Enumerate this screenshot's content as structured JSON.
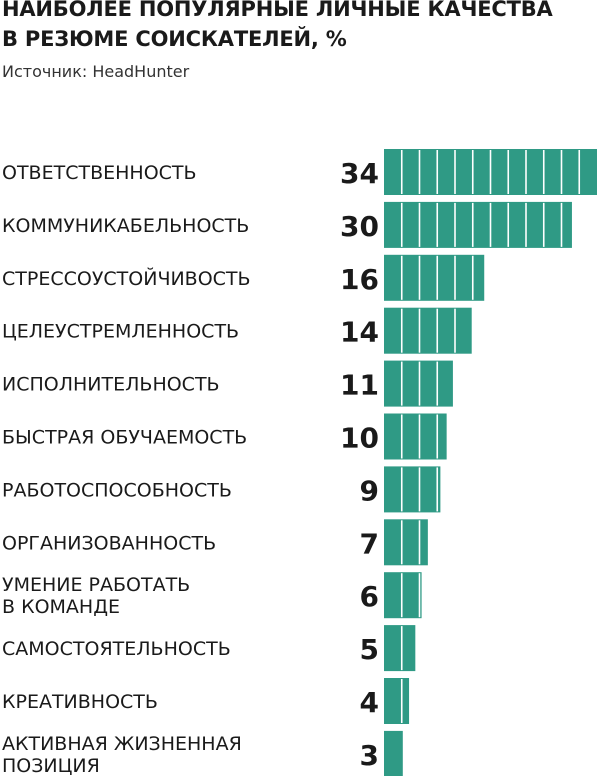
{
  "title": "НАИБОЛЕЕ ПОПУЛЯРНЫЕ ЛИЧНЫЕ КАЧЕСТВА\nВ РЕЗЮМЕ СОИСКАТЕЛЕЙ, %",
  "source": "Источник: HeadHunter",
  "colors": {
    "bar": "#2f9a85",
    "segment_divider": "#ffffff",
    "text": "#1a1a1a"
  },
  "chart_data": {
    "type": "bar",
    "orientation": "horizontal",
    "title": "НАИБОЛЕЕ ПОПУЛЯРНЫЕ ЛИЧНЫЕ КАЧЕСТВА В РЕЗЮМЕ СОИСКАТЕЛЕЙ, %",
    "categories": [
      "ОТВЕТСТВЕННОСТЬ",
      "КОММУНИКАБЕЛЬНОСТЬ",
      "СТРЕССОУСТОЙЧИВОСТЬ",
      "ЦЕЛЕУСТРЕМЛЕННОСТЬ",
      "ИСПОЛНИТЕЛЬНОСТЬ",
      "БЫСТРАЯ ОБУЧАЕМОСТЬ",
      "РАБОТОСПОСОБНОСТЬ",
      "ОРГАНИЗОВАННОСТЬ",
      "УМЕНИЕ РАБОТАТЬ\nВ КОМАНДЕ",
      "САМОСТОЯТЕЛЬНОСТЬ",
      "КРЕАТИВНОСТЬ",
      "АКТИВНАЯ ЖИЗНЕННАЯ\nПОЗИЦИЯ"
    ],
    "values": [
      34,
      30,
      16,
      14,
      11,
      10,
      9,
      7,
      6,
      5,
      4,
      3
    ],
    "data_labels": [
      "34",
      "30",
      "16",
      "14",
      "11",
      "10",
      "9",
      "7",
      "6",
      "5",
      "4",
      "3"
    ],
    "xlim": [
      0,
      34
    ],
    "grid": false,
    "legend": "none"
  }
}
